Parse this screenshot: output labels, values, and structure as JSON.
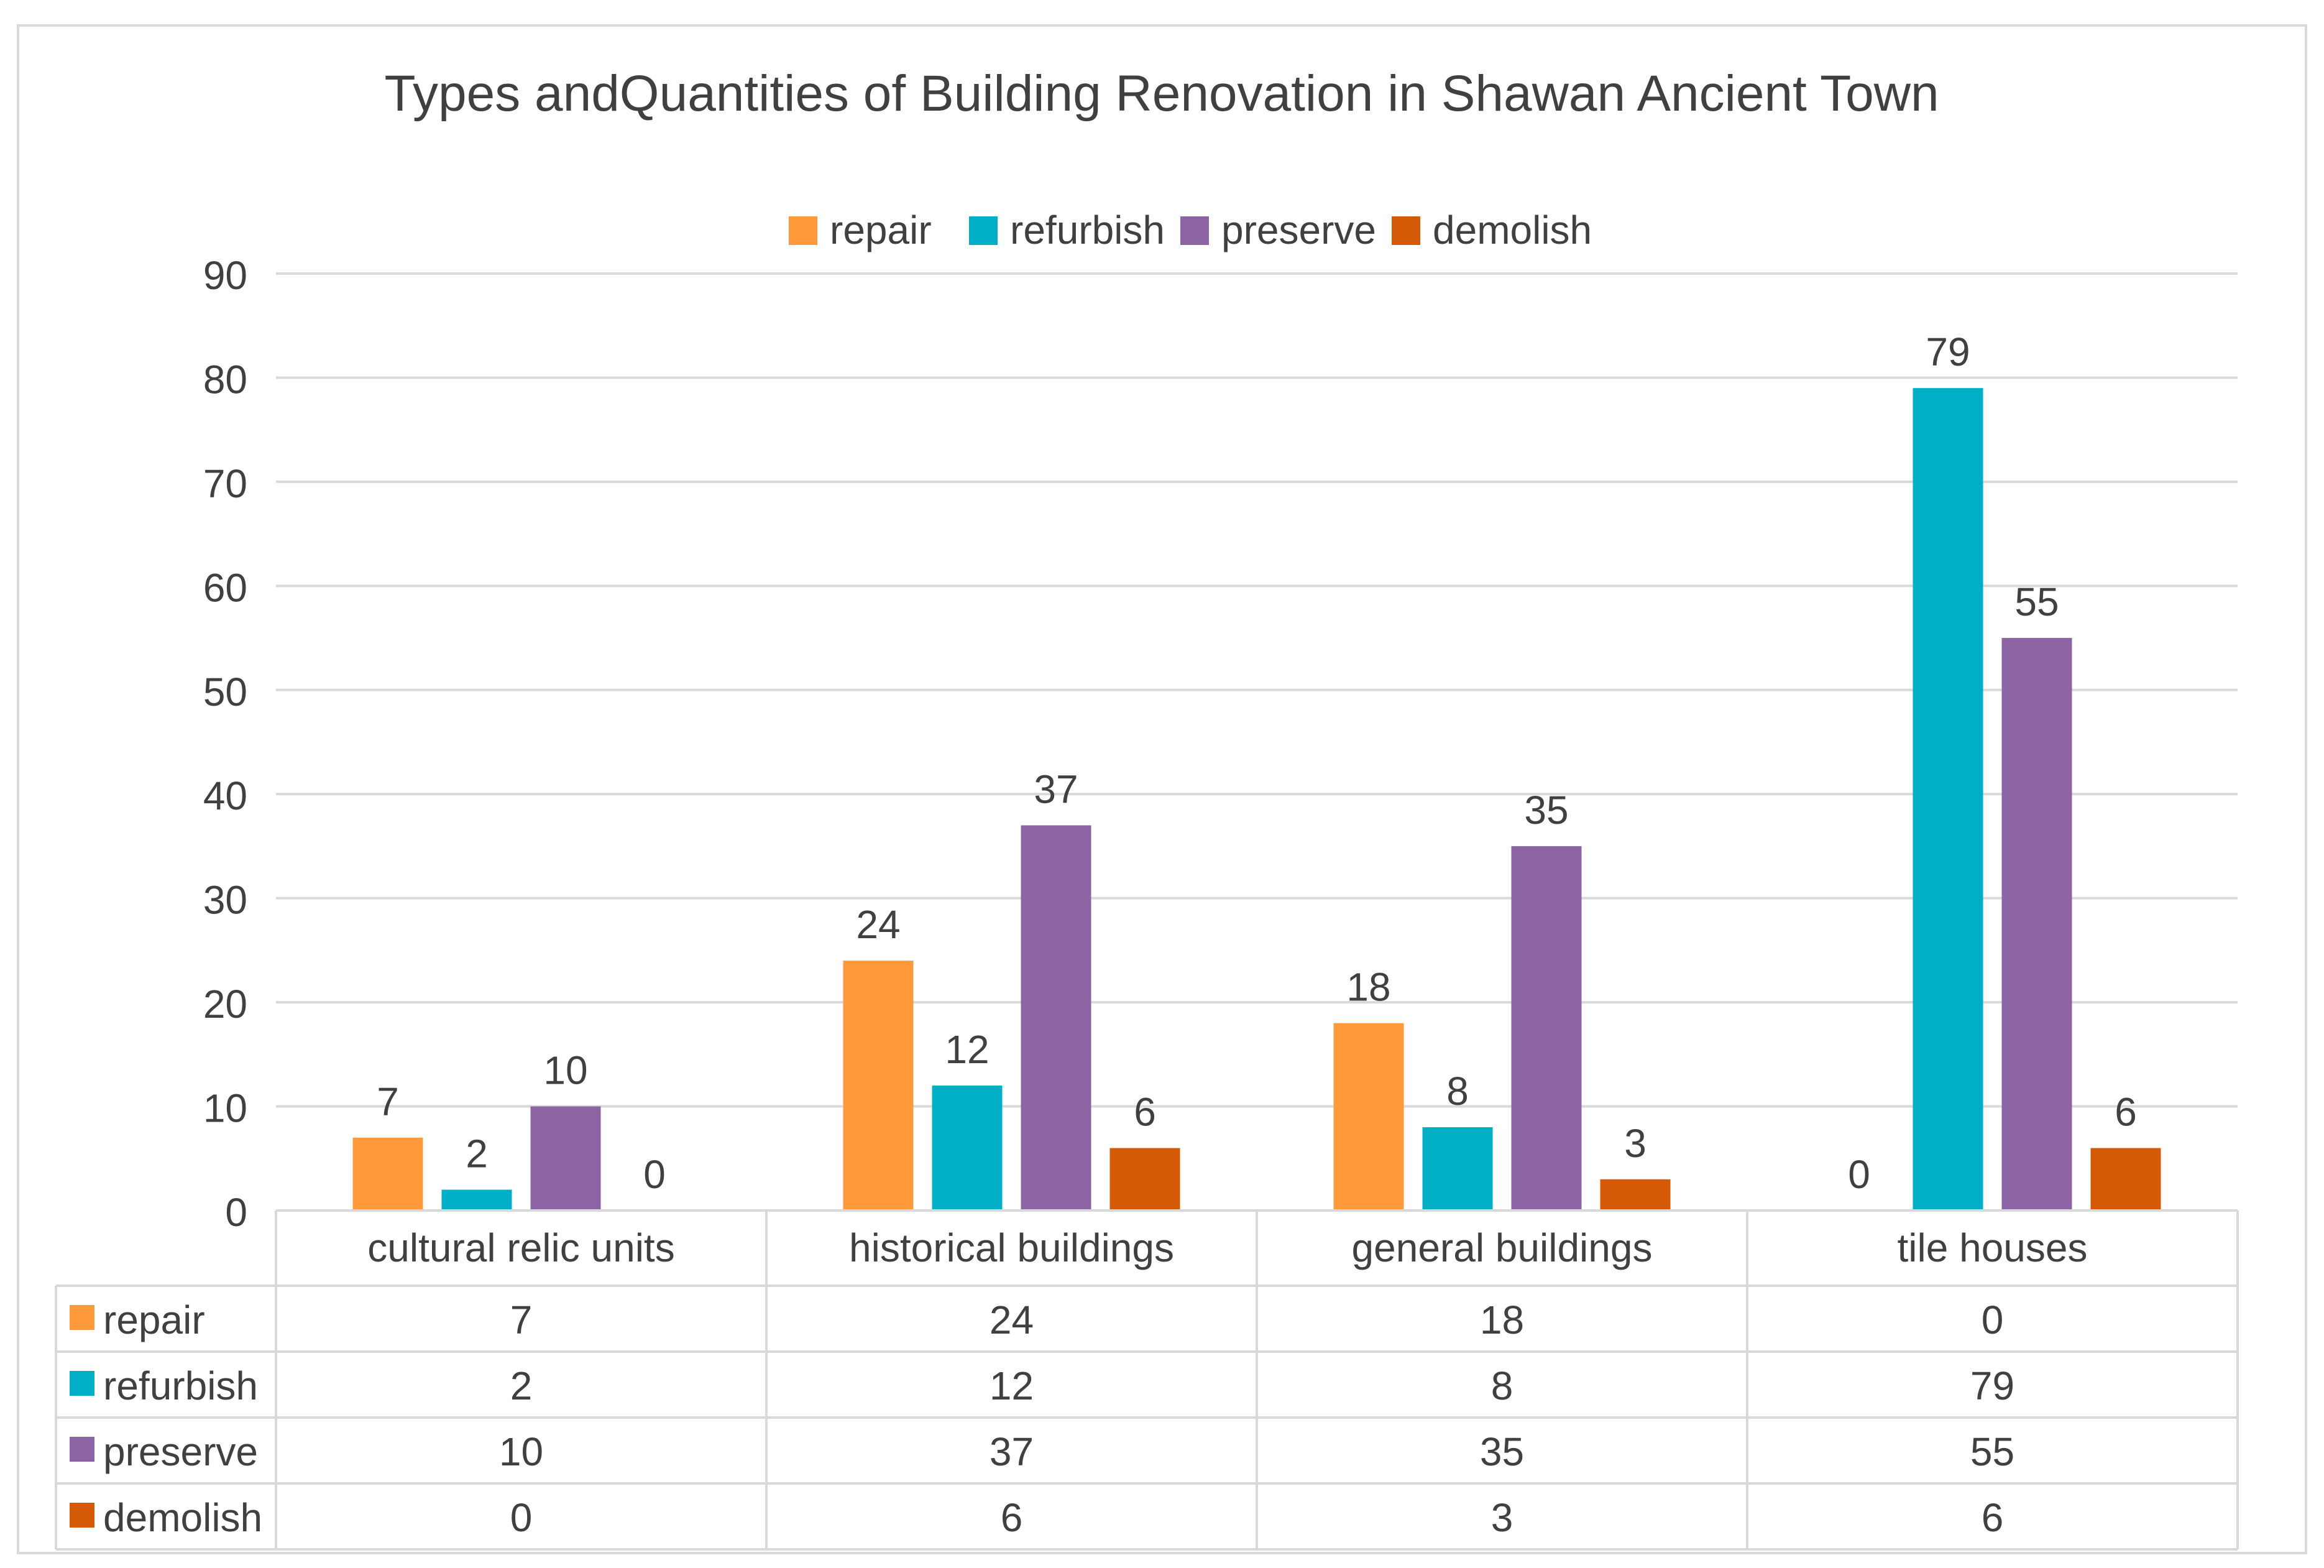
{
  "chart_data": {
    "type": "bar",
    "title": "Types andQuantities of Building Renovation in Shawan Ancient Town",
    "categories": [
      "cultural relic units",
      "historical buildings",
      "general buildings",
      "tile houses"
    ],
    "series": [
      {
        "name": "repair",
        "color": "#FF9A3C",
        "values": [
          7,
          24,
          18,
          0
        ]
      },
      {
        "name": "refurbish",
        "color": "#00AFC6",
        "values": [
          2,
          12,
          8,
          79
        ]
      },
      {
        "name": "preserve",
        "color": "#8C64A4",
        "values": [
          10,
          37,
          35,
          55
        ]
      },
      {
        "name": "demolish",
        "color": "#D55A08",
        "values": [
          0,
          6,
          3,
          6
        ]
      }
    ],
    "ylim": [
      0,
      90
    ],
    "yticks": [
      0,
      10,
      20,
      30,
      40,
      50,
      60,
      70,
      80,
      90
    ],
    "legend_position": "top-center",
    "grid": true,
    "data_table": true
  }
}
